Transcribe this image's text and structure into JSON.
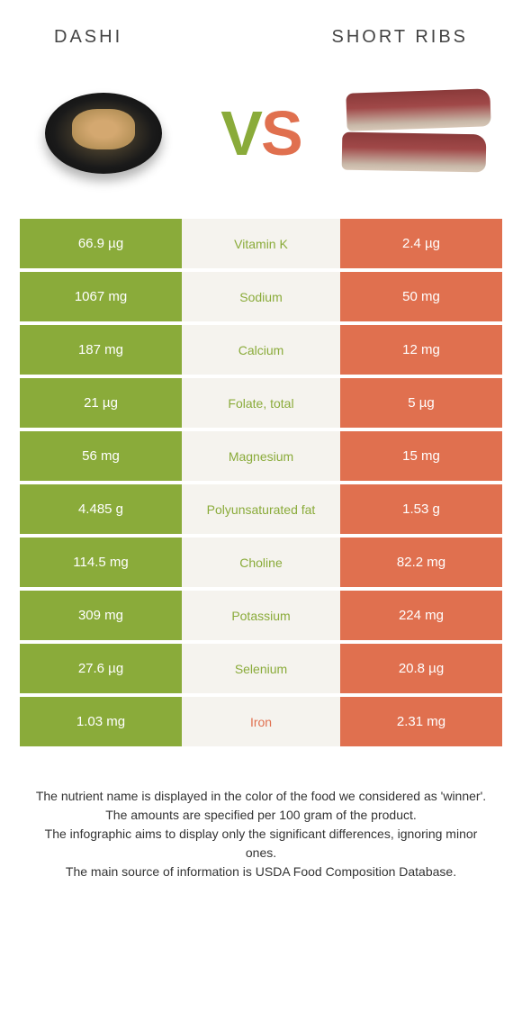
{
  "header": {
    "left_title": "DASHI",
    "right_title": "SHORT RIBS"
  },
  "vs": {
    "v": "V",
    "s": "S"
  },
  "colors": {
    "left_bg": "#8aab3a",
    "right_bg": "#e0704f",
    "mid_bg": "#f5f3ee",
    "page_bg": "#ffffff"
  },
  "rows": [
    {
      "left": "66.9 µg",
      "label": "Vitamin K",
      "right": "2.4 µg",
      "winner": "left"
    },
    {
      "left": "1067 mg",
      "label": "Sodium",
      "right": "50 mg",
      "winner": "left"
    },
    {
      "left": "187 mg",
      "label": "Calcium",
      "right": "12 mg",
      "winner": "left"
    },
    {
      "left": "21 µg",
      "label": "Folate, total",
      "right": "5 µg",
      "winner": "left"
    },
    {
      "left": "56 mg",
      "label": "Magnesium",
      "right": "15 mg",
      "winner": "left"
    },
    {
      "left": "4.485 g",
      "label": "Polyunsaturated fat",
      "right": "1.53 g",
      "winner": "left"
    },
    {
      "left": "114.5 mg",
      "label": "Choline",
      "right": "82.2 mg",
      "winner": "left"
    },
    {
      "left": "309 mg",
      "label": "Potassium",
      "right": "224 mg",
      "winner": "left"
    },
    {
      "left": "27.6 µg",
      "label": "Selenium",
      "right": "20.8 µg",
      "winner": "left"
    },
    {
      "left": "1.03 mg",
      "label": "Iron",
      "right": "2.31 mg",
      "winner": "right"
    }
  ],
  "footnotes": [
    "The nutrient name is displayed in the color of the food we considered as 'winner'.",
    "The amounts are specified per 100 gram of the product.",
    "The infographic aims to display only the significant differences, ignoring minor ones.",
    "The main source of information is USDA Food Composition Database."
  ]
}
